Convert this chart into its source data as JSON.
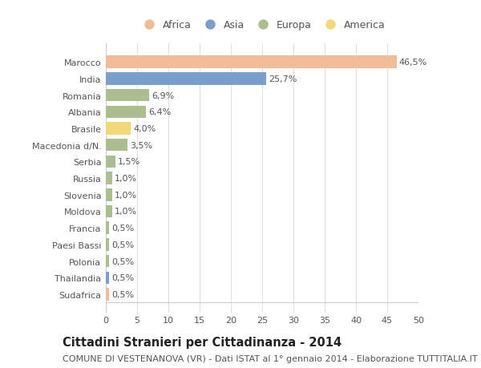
{
  "countries": [
    "Marocco",
    "India",
    "Romania",
    "Albania",
    "Brasile",
    "Macedonia d/N.",
    "Serbia",
    "Russia",
    "Slovenia",
    "Moldova",
    "Francia",
    "Paesi Bassi",
    "Polonia",
    "Thailandia",
    "Sudafrica"
  ],
  "values": [
    46.5,
    25.7,
    6.9,
    6.4,
    4.0,
    3.5,
    1.5,
    1.0,
    1.0,
    1.0,
    0.5,
    0.5,
    0.5,
    0.5,
    0.5
  ],
  "labels": [
    "46,5%",
    "25,7%",
    "6,9%",
    "6,4%",
    "4,0%",
    "3,5%",
    "1,5%",
    "1,0%",
    "1,0%",
    "1,0%",
    "0,5%",
    "0,5%",
    "0,5%",
    "0,5%",
    "0,5%"
  ],
  "continents": [
    "Africa",
    "Asia",
    "Europa",
    "Europa",
    "America",
    "Europa",
    "Europa",
    "Europa",
    "Europa",
    "Europa",
    "Europa",
    "Europa",
    "Europa",
    "Asia",
    "Africa"
  ],
  "continent_colors": {
    "Africa": "#F2BC96",
    "Asia": "#7B9FCC",
    "Europa": "#ABBE90",
    "America": "#F2D878"
  },
  "legend_order": [
    "Africa",
    "Asia",
    "Europa",
    "America"
  ],
  "title": "Cittadini Stranieri per Cittadinanza - 2014",
  "subtitle": "COMUNE DI VESTENANOVA (VR) - Dati ISTAT al 1° gennaio 2014 - Elaborazione TUTTITALIA.IT",
  "xlim": [
    0,
    50
  ],
  "xticks": [
    0,
    5,
    10,
    15,
    20,
    25,
    30,
    35,
    40,
    45,
    50
  ],
  "background_color": "#ffffff",
  "grid_color": "#e0e0e0",
  "title_fontsize": 10.5,
  "subtitle_fontsize": 8,
  "label_fontsize": 8,
  "tick_fontsize": 8,
  "legend_fontsize": 9
}
